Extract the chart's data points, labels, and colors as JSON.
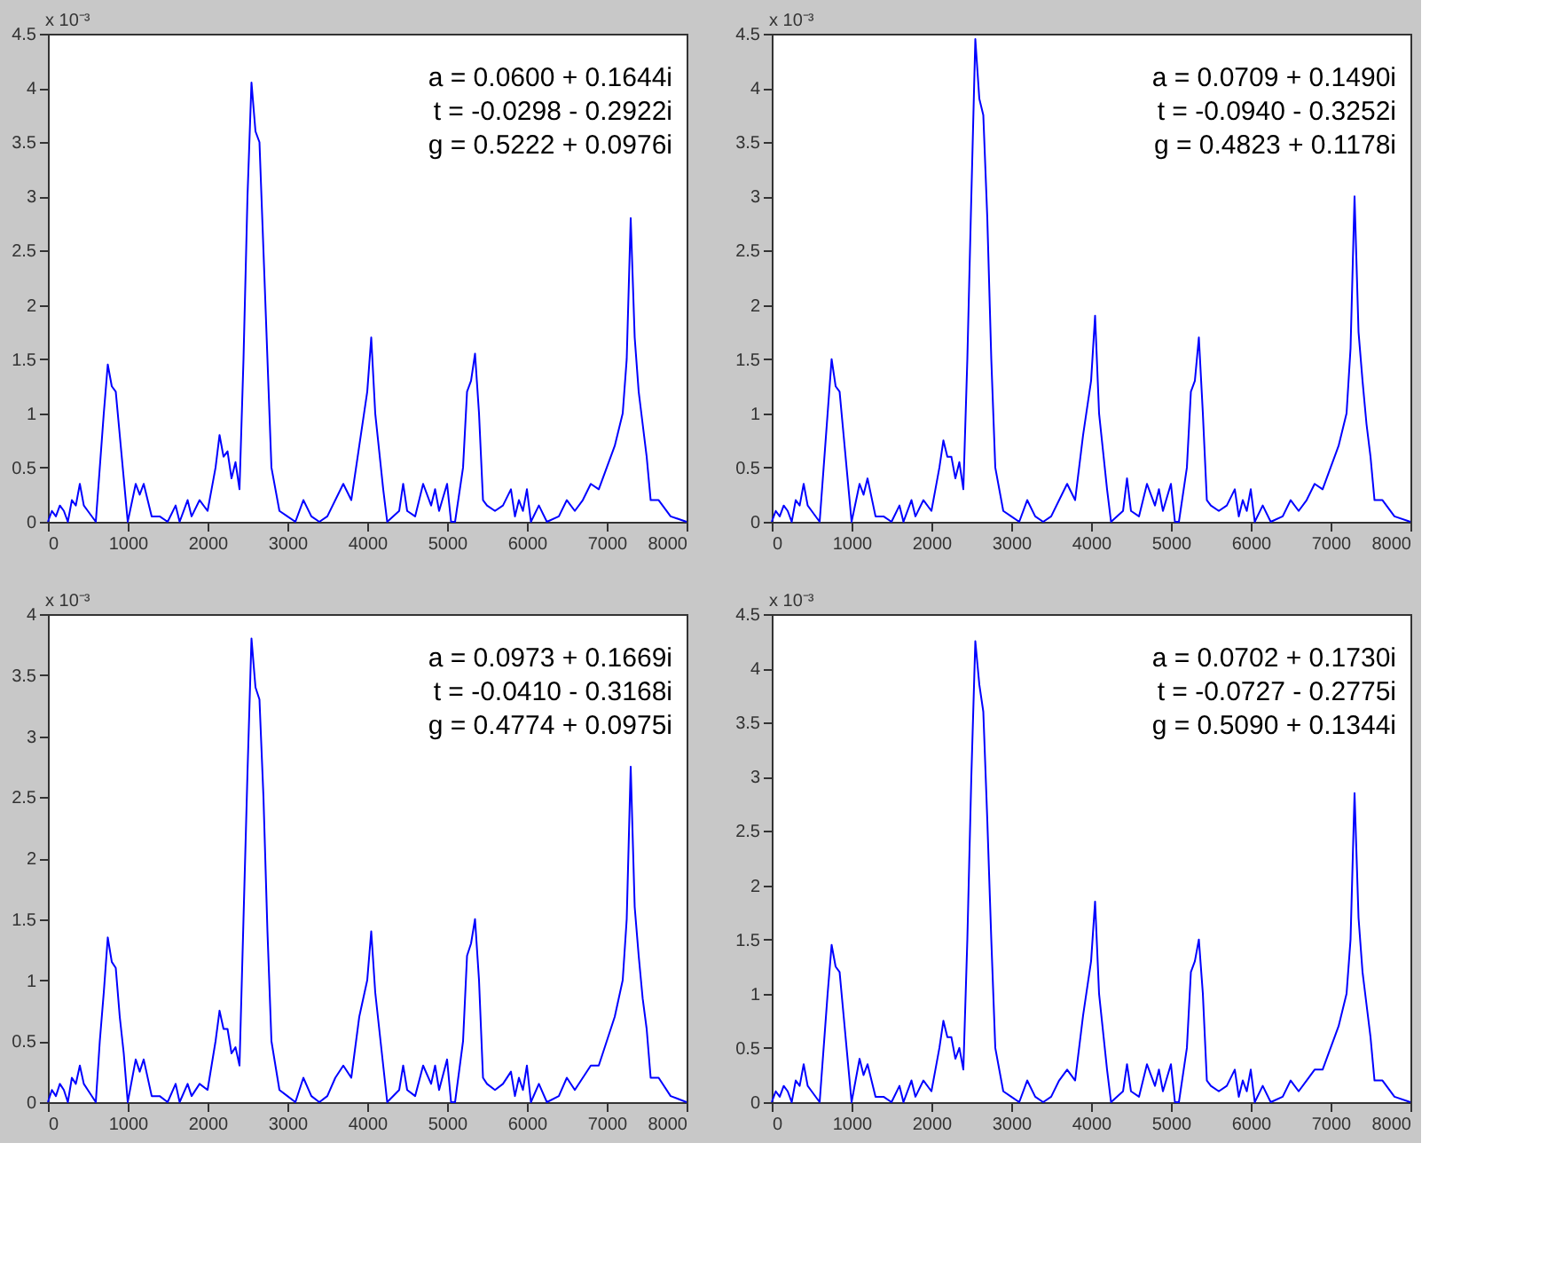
{
  "chart_data": [
    {
      "type": "line",
      "ylabel": "x 10⁻³",
      "annotations": [
        "a = 0.0600 + 0.1644i",
        "t = -0.0298 - 0.2922i",
        "g = 0.5222 + 0.0976i"
      ],
      "xlim": [
        0,
        8000
      ],
      "xticks": [
        0,
        1000,
        2000,
        3000,
        4000,
        5000,
        6000,
        7000,
        8000
      ],
      "ylim": [
        0,
        4.5
      ],
      "yticks": [
        0,
        0.5,
        1,
        1.5,
        2,
        2.5,
        3,
        3.5,
        4,
        4.5
      ],
      "grid": false,
      "x": [
        0,
        50,
        100,
        150,
        200,
        250,
        300,
        350,
        400,
        450,
        500,
        600,
        650,
        700,
        750,
        800,
        850,
        900,
        950,
        1000,
        1100,
        1150,
        1200,
        1300,
        1400,
        1500,
        1600,
        1650,
        1750,
        1800,
        1900,
        2000,
        2050,
        2100,
        2150,
        2200,
        2250,
        2300,
        2350,
        2400,
        2450,
        2500,
        2550,
        2600,
        2650,
        2700,
        2750,
        2800,
        2900,
        3000,
        3100,
        3200,
        3300,
        3400,
        3500,
        3600,
        3700,
        3800,
        3900,
        4000,
        4050,
        4100,
        4200,
        4250,
        4400,
        4450,
        4500,
        4600,
        4700,
        4800,
        4850,
        4900,
        5000,
        5050,
        5100,
        5200,
        5250,
        5300,
        5350,
        5400,
        5450,
        5500,
        5600,
        5700,
        5800,
        5850,
        5900,
        5950,
        6000,
        6050,
        6150,
        6250,
        6400,
        6500,
        6600,
        6700,
        6800,
        6900,
        7000,
        7100,
        7200,
        7250,
        7300,
        7350,
        7400,
        7450,
        7500,
        7550,
        7650,
        7800,
        8000
      ],
      "series": [
        {
          "color": "#0000ff",
          "values": [
            0,
            0.1,
            0.05,
            0.15,
            0.1,
            0,
            0.2,
            0.15,
            0.35,
            0.15,
            0.1,
            0,
            0.5,
            1.0,
            1.45,
            1.25,
            1.2,
            0.8,
            0.4,
            0,
            0.35,
            0.25,
            0.35,
            0.05,
            0.05,
            0,
            0.15,
            0,
            0.2,
            0.05,
            0.2,
            0.1,
            0.3,
            0.5,
            0.8,
            0.6,
            0.65,
            0.4,
            0.55,
            0.3,
            1.5,
            3.0,
            4.05,
            3.6,
            3.5,
            2.5,
            1.5,
            0.5,
            0.1,
            0.05,
            0,
            0.2,
            0.05,
            0,
            0.05,
            0.2,
            0.35,
            0.2,
            0.7,
            1.2,
            1.7,
            1.0,
            0.3,
            0,
            0.1,
            0.35,
            0.1,
            0.05,
            0.35,
            0.15,
            0.3,
            0.1,
            0.35,
            0,
            0,
            0.5,
            1.2,
            1.3,
            1.55,
            1.0,
            0.2,
            0.15,
            0.1,
            0.15,
            0.3,
            0.05,
            0.2,
            0.1,
            0.3,
            0,
            0.15,
            0,
            0.05,
            0.2,
            0.1,
            0.2,
            0.35,
            0.3,
            0.5,
            0.7,
            1.0,
            1.5,
            2.8,
            1.7,
            1.2,
            0.9,
            0.6,
            0.2,
            0.2,
            0.05,
            0
          ]
        }
      ]
    },
    {
      "type": "line",
      "ylabel": "x 10⁻³",
      "annotations": [
        "a = 0.0709 + 0.1490i",
        "t = -0.0940 - 0.3252i",
        "g = 0.4823 + 0.1178i"
      ],
      "xlim": [
        0,
        8000
      ],
      "xticks": [
        0,
        1000,
        2000,
        3000,
        4000,
        5000,
        6000,
        7000,
        8000
      ],
      "ylim": [
        0,
        4.5
      ],
      "yticks": [
        0,
        0.5,
        1,
        1.5,
        2,
        2.5,
        3,
        3.5,
        4,
        4.5
      ],
      "grid": false,
      "x": [
        0,
        50,
        100,
        150,
        200,
        250,
        300,
        350,
        400,
        450,
        500,
        600,
        650,
        700,
        750,
        800,
        850,
        900,
        950,
        1000,
        1100,
        1150,
        1200,
        1300,
        1400,
        1500,
        1600,
        1650,
        1750,
        1800,
        1900,
        2000,
        2050,
        2100,
        2150,
        2200,
        2250,
        2300,
        2350,
        2400,
        2450,
        2500,
        2550,
        2600,
        2650,
        2700,
        2750,
        2800,
        2900,
        3000,
        3100,
        3200,
        3300,
        3400,
        3500,
        3600,
        3700,
        3800,
        3900,
        4000,
        4050,
        4100,
        4200,
        4250,
        4400,
        4450,
        4500,
        4600,
        4700,
        4800,
        4850,
        4900,
        5000,
        5050,
        5100,
        5200,
        5250,
        5300,
        5350,
        5400,
        5450,
        5500,
        5600,
        5700,
        5800,
        5850,
        5900,
        5950,
        6000,
        6050,
        6150,
        6250,
        6400,
        6500,
        6600,
        6700,
        6800,
        6900,
        7000,
        7100,
        7200,
        7250,
        7300,
        7350,
        7400,
        7450,
        7500,
        7550,
        7650,
        7800,
        8000
      ],
      "series": [
        {
          "color": "#0000ff",
          "values": [
            0,
            0.1,
            0.05,
            0.15,
            0.1,
            0,
            0.2,
            0.15,
            0.35,
            0.15,
            0.1,
            0,
            0.5,
            1.0,
            1.5,
            1.25,
            1.2,
            0.8,
            0.4,
            0,
            0.35,
            0.25,
            0.4,
            0.05,
            0.05,
            0,
            0.15,
            0,
            0.2,
            0.05,
            0.2,
            0.1,
            0.3,
            0.5,
            0.75,
            0.6,
            0.6,
            0.4,
            0.55,
            0.3,
            1.5,
            3.0,
            4.45,
            3.9,
            3.75,
            2.8,
            1.5,
            0.5,
            0.1,
            0.05,
            0,
            0.2,
            0.05,
            0,
            0.05,
            0.2,
            0.35,
            0.2,
            0.8,
            1.3,
            1.9,
            1.0,
            0.3,
            0,
            0.1,
            0.4,
            0.1,
            0.05,
            0.35,
            0.15,
            0.3,
            0.1,
            0.35,
            0,
            0,
            0.5,
            1.2,
            1.3,
            1.7,
            1.0,
            0.2,
            0.15,
            0.1,
            0.15,
            0.3,
            0.05,
            0.2,
            0.1,
            0.3,
            0,
            0.15,
            0,
            0.05,
            0.2,
            0.1,
            0.2,
            0.35,
            0.3,
            0.5,
            0.7,
            1.0,
            1.6,
            3.0,
            1.75,
            1.3,
            0.9,
            0.6,
            0.2,
            0.2,
            0.05,
            0
          ]
        }
      ]
    },
    {
      "type": "line",
      "ylabel": "x 10⁻³",
      "annotations": [
        "a = 0.0973 + 0.1669i",
        "t = -0.0410 - 0.3168i",
        "g = 0.4774 + 0.0975i"
      ],
      "xlim": [
        0,
        8000
      ],
      "xticks": [
        0,
        1000,
        2000,
        3000,
        4000,
        5000,
        6000,
        7000,
        8000
      ],
      "ylim": [
        0,
        4
      ],
      "yticks": [
        0,
        0.5,
        1,
        1.5,
        2,
        2.5,
        3,
        3.5,
        4
      ],
      "grid": false,
      "x": [
        0,
        50,
        100,
        150,
        200,
        250,
        300,
        350,
        400,
        450,
        500,
        600,
        650,
        700,
        750,
        800,
        850,
        900,
        950,
        1000,
        1100,
        1150,
        1200,
        1300,
        1400,
        1500,
        1600,
        1650,
        1750,
        1800,
        1900,
        2000,
        2050,
        2100,
        2150,
        2200,
        2250,
        2300,
        2350,
        2400,
        2450,
        2500,
        2550,
        2600,
        2650,
        2700,
        2750,
        2800,
        2900,
        3000,
        3100,
        3200,
        3300,
        3400,
        3500,
        3600,
        3700,
        3800,
        3900,
        4000,
        4050,
        4100,
        4200,
        4250,
        4400,
        4450,
        4500,
        4600,
        4700,
        4800,
        4850,
        4900,
        5000,
        5050,
        5100,
        5200,
        5250,
        5300,
        5350,
        5400,
        5450,
        5500,
        5600,
        5700,
        5800,
        5850,
        5900,
        5950,
        6000,
        6050,
        6150,
        6250,
        6400,
        6500,
        6600,
        6700,
        6800,
        6900,
        7000,
        7100,
        7200,
        7250,
        7300,
        7350,
        7400,
        7450,
        7500,
        7550,
        7650,
        7800,
        8000
      ],
      "series": [
        {
          "color": "#0000ff",
          "values": [
            0,
            0.1,
            0.05,
            0.15,
            0.1,
            0,
            0.2,
            0.15,
            0.3,
            0.15,
            0.1,
            0,
            0.5,
            0.9,
            1.35,
            1.15,
            1.1,
            0.7,
            0.4,
            0,
            0.35,
            0.25,
            0.35,
            0.05,
            0.05,
            0,
            0.15,
            0,
            0.15,
            0.05,
            0.15,
            0.1,
            0.3,
            0.5,
            0.75,
            0.6,
            0.6,
            0.4,
            0.45,
            0.3,
            1.5,
            2.7,
            3.8,
            3.4,
            3.3,
            2.5,
            1.4,
            0.5,
            0.1,
            0.05,
            0,
            0.2,
            0.05,
            0,
            0.05,
            0.2,
            0.3,
            0.2,
            0.7,
            1.0,
            1.4,
            0.9,
            0.3,
            0,
            0.1,
            0.3,
            0.1,
            0.05,
            0.3,
            0.15,
            0.3,
            0.1,
            0.35,
            0,
            0,
            0.5,
            1.2,
            1.3,
            1.5,
            1.0,
            0.2,
            0.15,
            0.1,
            0.15,
            0.25,
            0.05,
            0.2,
            0.1,
            0.3,
            0,
            0.15,
            0,
            0.05,
            0.2,
            0.1,
            0.2,
            0.3,
            0.3,
            0.5,
            0.7,
            1.0,
            1.5,
            2.75,
            1.6,
            1.2,
            0.85,
            0.6,
            0.2,
            0.2,
            0.05,
            0
          ]
        }
      ]
    },
    {
      "type": "line",
      "ylabel": "x 10⁻³",
      "annotations": [
        "a = 0.0702 + 0.1730i",
        "t = -0.0727 - 0.2775i",
        "g = 0.5090 + 0.1344i"
      ],
      "xlim": [
        0,
        8000
      ],
      "xticks": [
        0,
        1000,
        2000,
        3000,
        4000,
        5000,
        6000,
        7000,
        8000
      ],
      "ylim": [
        0,
        4.5
      ],
      "yticks": [
        0,
        0.5,
        1,
        1.5,
        2,
        2.5,
        3,
        3.5,
        4,
        4.5
      ],
      "grid": false,
      "x": [
        0,
        50,
        100,
        150,
        200,
        250,
        300,
        350,
        400,
        450,
        500,
        600,
        650,
        700,
        750,
        800,
        850,
        900,
        950,
        1000,
        1100,
        1150,
        1200,
        1300,
        1400,
        1500,
        1600,
        1650,
        1750,
        1800,
        1900,
        2000,
        2050,
        2100,
        2150,
        2200,
        2250,
        2300,
        2350,
        2400,
        2450,
        2500,
        2550,
        2600,
        2650,
        2700,
        2750,
        2800,
        2900,
        3000,
        3100,
        3200,
        3300,
        3400,
        3500,
        3600,
        3700,
        3800,
        3900,
        4000,
        4050,
        4100,
        4200,
        4250,
        4400,
        4450,
        4500,
        4600,
        4700,
        4800,
        4850,
        4900,
        5000,
        5050,
        5100,
        5200,
        5250,
        5300,
        5350,
        5400,
        5450,
        5500,
        5600,
        5700,
        5800,
        5850,
        5900,
        5950,
        6000,
        6050,
        6150,
        6250,
        6400,
        6500,
        6600,
        6700,
        6800,
        6900,
        7000,
        7100,
        7200,
        7250,
        7300,
        7350,
        7400,
        7450,
        7500,
        7550,
        7650,
        7800,
        8000
      ],
      "series": [
        {
          "color": "#0000ff",
          "values": [
            0,
            0.1,
            0.05,
            0.15,
            0.1,
            0,
            0.2,
            0.15,
            0.35,
            0.15,
            0.1,
            0,
            0.5,
            1.0,
            1.45,
            1.25,
            1.2,
            0.8,
            0.4,
            0,
            0.4,
            0.25,
            0.35,
            0.05,
            0.05,
            0,
            0.15,
            0,
            0.2,
            0.05,
            0.2,
            0.1,
            0.3,
            0.5,
            0.75,
            0.6,
            0.6,
            0.4,
            0.5,
            0.3,
            1.5,
            3.0,
            4.25,
            3.85,
            3.6,
            2.6,
            1.5,
            0.5,
            0.1,
            0.05,
            0,
            0.2,
            0.05,
            0,
            0.05,
            0.2,
            0.3,
            0.2,
            0.8,
            1.3,
            1.85,
            1.0,
            0.3,
            0,
            0.1,
            0.35,
            0.1,
            0.05,
            0.35,
            0.15,
            0.3,
            0.1,
            0.35,
            0,
            0,
            0.5,
            1.2,
            1.3,
            1.5,
            1.0,
            0.2,
            0.15,
            0.1,
            0.15,
            0.3,
            0.05,
            0.2,
            0.1,
            0.3,
            0,
            0.15,
            0,
            0.05,
            0.2,
            0.1,
            0.2,
            0.3,
            0.3,
            0.5,
            0.7,
            1.0,
            1.5,
            2.85,
            1.7,
            1.2,
            0.9,
            0.6,
            0.2,
            0.2,
            0.05,
            0
          ]
        }
      ]
    }
  ]
}
